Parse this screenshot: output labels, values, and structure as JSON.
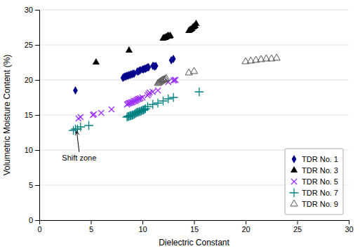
{
  "chart_data": {
    "type": "scatter",
    "xlabel": "Dielectric Constant",
    "ylabel": "Volumetric Moisture Content (%)",
    "xlim": [
      0,
      30
    ],
    "ylim": [
      0,
      30
    ],
    "xticks": [
      0,
      5,
      10,
      15,
      20,
      25,
      30
    ],
    "yticks": [
      0,
      5,
      10,
      15,
      20,
      25,
      30
    ],
    "grid": "y",
    "legend": "lower right",
    "series": [
      {
        "name": "TDR No. 1",
        "color": "#00008B",
        "marker": "diamond",
        "x": [
          3.5,
          8.1,
          8.2,
          8.3,
          8.4,
          8.5,
          8.6,
          8.7,
          8.8,
          8.9,
          9.0,
          9.1,
          9.2,
          9.5,
          9.6,
          9.7,
          9.8,
          10.0,
          10.1,
          10.2,
          10.3,
          10.4,
          10.5,
          10.6,
          11.0,
          11.1,
          11.2,
          11.3,
          12.8,
          13.0
        ],
        "values": [
          18.5,
          20.3,
          20.4,
          20.5,
          20.5,
          20.6,
          20.6,
          20.7,
          20.7,
          20.8,
          20.8,
          20.9,
          20.9,
          21.2,
          21.2,
          21.3,
          21.4,
          21.5,
          21.5,
          21.6,
          21.6,
          21.7,
          21.8,
          21.8,
          22.0,
          22.0,
          21.9,
          22.0,
          22.8,
          23.0
        ]
      },
      {
        "name": "TDR No. 3",
        "color": "#000000",
        "marker": "triangle",
        "x": [
          5.5,
          8.7,
          12.0,
          12.1,
          12.2,
          12.3,
          12.4,
          12.5,
          12.6,
          12.7,
          14.5,
          14.6,
          14.7,
          14.8,
          14.9,
          15.0,
          15.1,
          15.2
        ],
        "values": [
          22.5,
          24.2,
          25.9,
          26.0,
          26.0,
          26.1,
          26.2,
          26.3,
          26.2,
          26.3,
          27.0,
          27.1,
          27.2,
          27.3,
          27.5,
          27.6,
          27.7,
          28.0
        ]
      },
      {
        "name": "TDR No. 5",
        "color": "#9B30FF",
        "marker": "x",
        "x": [
          3.8,
          4.0,
          5.2,
          5.3,
          6.0,
          7.0,
          8.5,
          8.6,
          8.7,
          8.8,
          8.9,
          9.0,
          9.1,
          9.2,
          9.3,
          9.4,
          9.5,
          9.6,
          9.7,
          9.8,
          10.0,
          10.5,
          10.6,
          10.7,
          11.0,
          11.5,
          12.5,
          13.0,
          13.1,
          13.2
        ],
        "values": [
          14.5,
          14.7,
          15.0,
          15.1,
          15.3,
          15.8,
          16.5,
          16.6,
          16.7,
          16.7,
          16.8,
          16.8,
          16.9,
          17.0,
          17.0,
          17.1,
          17.2,
          17.3,
          17.3,
          17.4,
          17.5,
          17.8,
          18.0,
          18.2,
          18.3,
          18.5,
          19.7,
          19.9,
          20.0,
          20.0
        ]
      },
      {
        "name": "TDR No. 7",
        "color": "#008080",
        "marker": "plus",
        "x": [
          3.3,
          3.5,
          3.7,
          4.0,
          4.8,
          8.5,
          8.6,
          8.7,
          8.8,
          8.9,
          9.0,
          9.1,
          9.2,
          9.3,
          9.4,
          9.5,
          9.6,
          9.7,
          9.8,
          9.9,
          10.0,
          10.1,
          10.2,
          10.3,
          10.5,
          11.0,
          11.5,
          12.0,
          12.5,
          13.0,
          15.5
        ],
        "values": [
          12.8,
          13.0,
          13.0,
          13.3,
          13.5,
          14.7,
          14.8,
          14.8,
          14.9,
          14.9,
          15.0,
          15.0,
          15.1,
          15.2,
          15.3,
          15.4,
          15.4,
          15.5,
          15.5,
          15.6,
          15.7,
          15.7,
          15.8,
          15.9,
          16.2,
          16.5,
          16.7,
          17.0,
          17.3,
          17.5,
          18.3
        ]
      },
      {
        "name": "TDR No. 9",
        "color": "#555555",
        "marker": "open-triangle",
        "x": [
          11.5,
          11.6,
          11.7,
          11.8,
          11.9,
          12.0,
          12.1,
          12.2,
          12.3,
          14.5,
          15.0,
          20.0,
          20.5,
          21.0,
          21.5,
          22.0,
          22.5,
          23.0
        ],
        "values": [
          19.5,
          19.6,
          19.7,
          19.8,
          19.9,
          20.0,
          20.0,
          20.1,
          20.2,
          21.0,
          21.2,
          22.6,
          22.7,
          22.8,
          22.9,
          23.0,
          23.0,
          23.1
        ]
      }
    ],
    "annotations": [
      {
        "text": "Shift zone",
        "x": 3.6,
        "y": 13.1,
        "text_x": 2.2,
        "text_y": 9.5
      }
    ]
  }
}
